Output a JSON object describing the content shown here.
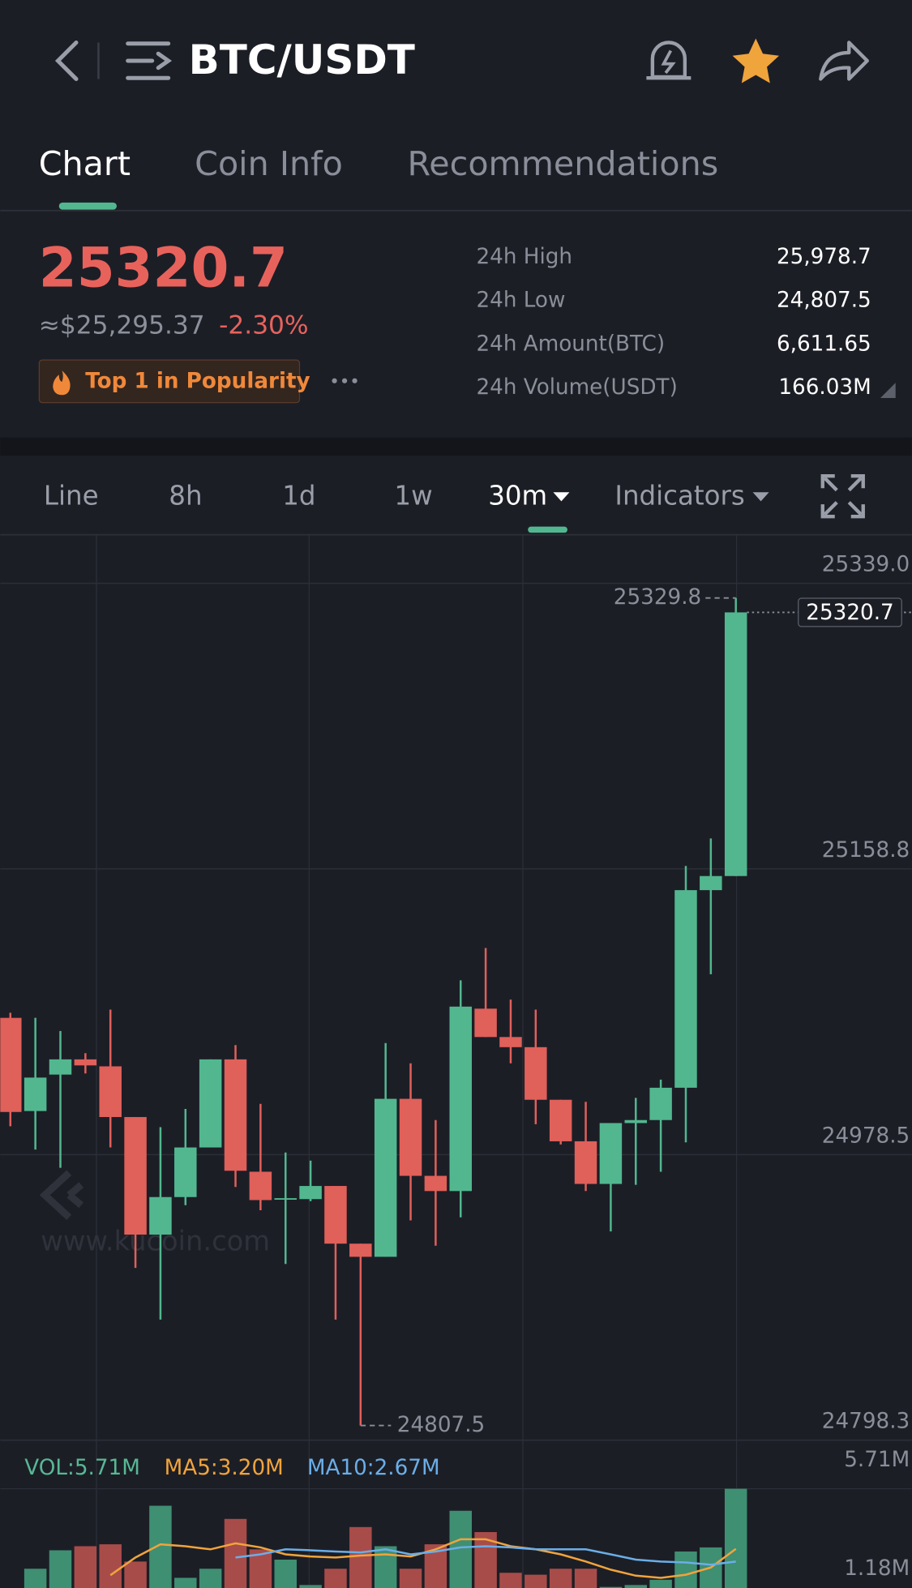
{
  "header": {
    "title": "BTC/USDT"
  },
  "tabs": [
    "Chart",
    "Coin Info",
    "Recommendations"
  ],
  "ticker": {
    "price": "25320.7",
    "usd_price": "≈$25,295.37",
    "change": "-2.30%",
    "badge": "Top 1 in Popularity",
    "stats": [
      {
        "label": "24h High",
        "value": "25,978.7"
      },
      {
        "label": "24h Low",
        "value": "24,807.5"
      },
      {
        "label": "24h Amount(BTC)",
        "value": "6,611.65"
      },
      {
        "label": "24h Volume(USDT)",
        "value": "166.03M"
      }
    ]
  },
  "toolbar": [
    "Line",
    "8h",
    "1d",
    "1w",
    "30m",
    "Indicators"
  ],
  "watermark": "www.kucoin.com",
  "chart_data": [
    {
      "type": "candlestick",
      "up_color": "#52b78f",
      "down_color": "#e0605a",
      "open": [
        25064.8,
        25006.0,
        25029.0,
        25038.6,
        25034.2,
        25002.2,
        24928.0,
        24951.7,
        24983.0,
        25038.6,
        24967.7,
        24950.4,
        24950.4,
        24958.7,
        24922.3,
        24914.0,
        25013.7,
        24965.1,
        24955.5,
        25070.6,
        25052.7,
        25046.3,
        25013.1,
        24986.9,
        24960.0,
        24998.4,
        25000.3,
        25020.7,
        25145.4,
        25154.3
      ],
      "high": [
        25068.0,
        25064.8,
        25056.5,
        25042.5,
        25070.0,
        25002.2,
        24995.8,
        25007.3,
        25038.6,
        25047.6,
        25010.5,
        24979.8,
        24974.7,
        24958.7,
        24922.3,
        25048.9,
        25036.1,
        25000.3,
        25088.5,
        25108.9,
        25076.3,
        25070.0,
        25013.1,
        25011.8,
        24998.4,
        25014.3,
        25025.8,
        25160.7,
        25178.0,
        25329.8
      ],
      "low": [
        24996.4,
        24981.7,
        24970.2,
        25029.7,
        24983.0,
        24907.0,
        24874.4,
        24946.6,
        24983.0,
        24958.1,
        24943.4,
        24909.5,
        24949.1,
        24874.4,
        24807.5,
        24914.0,
        24937.0,
        24921.0,
        24938.9,
        25052.7,
        25036.1,
        24997.7,
        24984.9,
        24955.5,
        24930.0,
        24959.4,
        24967.7,
        24986.2,
        25092.3,
        25154.3
      ],
      "close": [
        25005.4,
        25027.1,
        25038.6,
        25034.8,
        25002.2,
        24928.0,
        24951.7,
        24983.0,
        25038.6,
        24968.3,
        24949.8,
        24951.0,
        24958.7,
        24922.3,
        24914.0,
        25013.7,
        24965.1,
        24955.5,
        25071.9,
        25052.7,
        25046.3,
        25013.1,
        24986.9,
        24960.0,
        24998.4,
        25000.3,
        25020.7,
        25145.4,
        25154.3,
        25320.7
      ],
      "ylim": [
        24798.3,
        25369.7
      ],
      "yticks": [
        {
          "value": 25339.0,
          "label": "25339.0"
        },
        25158.8,
        24978.5,
        24798.3
      ],
      "grid": true,
      "max_marker": 25329.8,
      "min_marker": 24807.5,
      "last_price": 25320.7
    },
    {
      "type": "bar",
      "up_color": "#3f8f72",
      "down_color": "#a84c4a",
      "values": [
        1.0,
        2.37,
        3.14,
        3.31,
        3.39,
        2.67,
        5.0,
        1.99,
        2.37,
        4.45,
        3.18,
        2.75,
        1.69,
        2.37,
        4.11,
        3.31,
        2.37,
        3.39,
        4.79,
        3.9,
        2.2,
        2.12,
        2.37,
        2.37,
        1.61,
        1.69,
        1.91,
        3.09,
        3.26,
        5.71
      ],
      "lines": [
        {
          "color": "#f0a43c",
          "values": [
            null,
            null,
            null,
            null,
            2.1,
            2.84,
            3.39,
            3.31,
            3.18,
            3.43,
            3.26,
            2.97,
            2.88,
            2.84,
            2.92,
            2.97,
            2.88,
            3.18,
            3.6,
            3.6,
            3.31,
            3.18,
            2.97,
            2.67,
            2.33,
            2.08,
            1.99,
            2.12,
            2.42,
            3.2
          ]
        },
        {
          "color": "#6aaee8",
          "values": [
            null,
            null,
            null,
            null,
            null,
            null,
            null,
            null,
            null,
            2.84,
            2.97,
            3.18,
            3.14,
            3.09,
            3.05,
            3.18,
            2.97,
            3.09,
            3.26,
            3.31,
            3.26,
            3.18,
            3.18,
            3.18,
            2.97,
            2.75,
            2.67,
            2.63,
            2.54,
            2.67
          ]
        }
      ],
      "legend": [
        {
          "text": "VOL:5.71M",
          "color": "#58b894"
        },
        {
          "text": "MA5:3.20M",
          "color": "#f0a43c"
        },
        {
          "text": "MA10:2.67M",
          "color": "#6aaee8"
        }
      ],
      "ylim": [
        0,
        5.71
      ],
      "yticks": [
        {
          "value": 5.71,
          "label": "5.71M"
        },
        {
          "value": 1.18,
          "label": "1.18M"
        }
      ]
    }
  ]
}
